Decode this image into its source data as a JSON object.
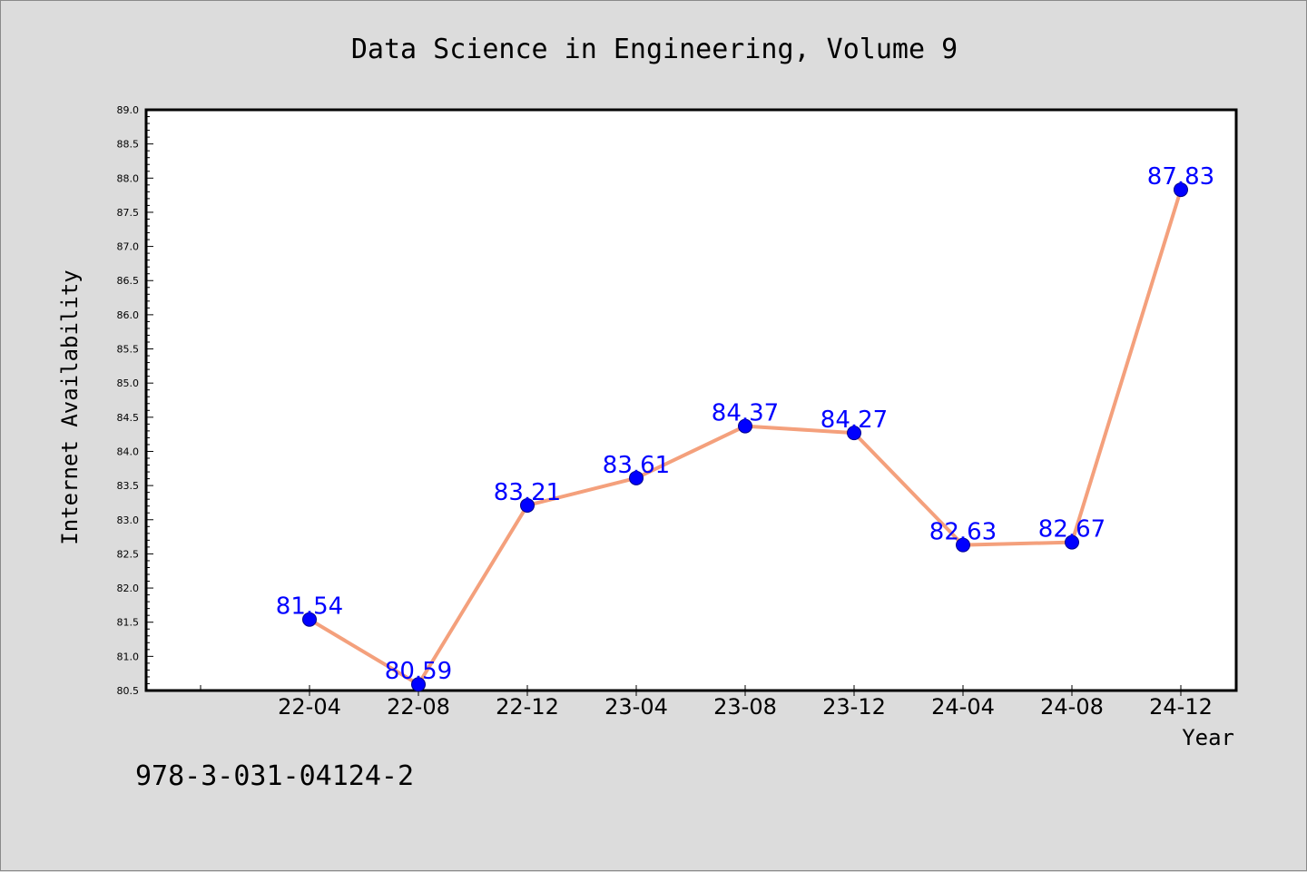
{
  "chart_data": {
    "type": "line",
    "title": "Data Science in Engineering, Volume 9",
    "xlabel": "Year",
    "ylabel": "Internet Availability",
    "categories": [
      "22-04",
      "22-08",
      "22-12",
      "23-04",
      "23-08",
      "23-12",
      "24-04",
      "24-08",
      "24-12"
    ],
    "series": [
      {
        "values": [
          81.54,
          80.59,
          83.21,
          83.61,
          84.37,
          84.27,
          82.63,
          82.67,
          87.83
        ],
        "data_labels": [
          "81.54",
          "80.59",
          "83.21",
          "83.61",
          "84.37",
          "84.27",
          "82.63",
          "82.67",
          "87.83"
        ],
        "line_color": "#f4a07c",
        "marker_color": "#0000ff"
      }
    ],
    "ylim": [
      80.5,
      89.0
    ],
    "yticks": [
      "80.5",
      "81.0",
      "81.5",
      "82.0",
      "82.5",
      "83.0",
      "83.5",
      "84.0",
      "84.5",
      "85.0",
      "85.5",
      "86.0",
      "86.5",
      "87.0",
      "87.5",
      "88.0",
      "88.5",
      "89.0"
    ],
    "grid": false,
    "legend": "none"
  },
  "footer": {
    "isbn": "978-3-031-04124-2"
  },
  "colors": {
    "background": "#dcdcdc",
    "plot_background": "#ffffff",
    "label_color": "#0000ff"
  }
}
